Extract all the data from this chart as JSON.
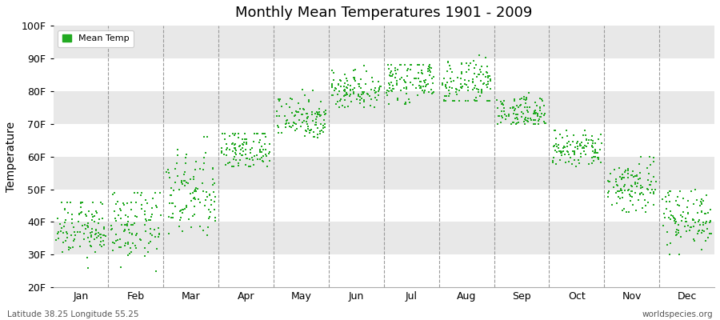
{
  "title": "Monthly Mean Temperatures 1901 - 2009",
  "ylabel": "Temperature",
  "subtitle_left": "Latitude 38.25 Longitude 55.25",
  "subtitle_right": "worldspecies.org",
  "legend_label": "Mean Temp",
  "background_color": "#ffffff",
  "plot_bg_color": "#ffffff",
  "band_color": "#e8e8e8",
  "dot_color": "#22aa22",
  "dot_size": 3,
  "ylim": [
    20,
    100
  ],
  "yticks": [
    20,
    30,
    40,
    50,
    60,
    70,
    80,
    90,
    100
  ],
  "ytick_labels": [
    "20F",
    "30F",
    "40F",
    "50F",
    "60F",
    "70F",
    "80F",
    "90F",
    "100F"
  ],
  "months": [
    "Jan",
    "Feb",
    "Mar",
    "Apr",
    "May",
    "Jun",
    "Jul",
    "Aug",
    "Sep",
    "Oct",
    "Nov",
    "Dec"
  ],
  "month_data": {
    "Jan": {
      "mean": 38.0,
      "std": 4.5,
      "min": 26,
      "max": 46
    },
    "Feb": {
      "mean": 38.5,
      "std": 5.5,
      "min": 23,
      "max": 49
    },
    "Mar": {
      "mean": 48.0,
      "std": 7.0,
      "min": 36,
      "max": 66
    },
    "Apr": {
      "mean": 62.0,
      "std": 3.5,
      "min": 57,
      "max": 67
    },
    "May": {
      "mean": 72.0,
      "std": 3.5,
      "min": 65,
      "max": 83
    },
    "Jun": {
      "mean": 80.5,
      "std": 3.0,
      "min": 75,
      "max": 88
    },
    "Jul": {
      "mean": 83.0,
      "std": 3.0,
      "min": 76,
      "max": 88
    },
    "Aug": {
      "mean": 82.0,
      "std": 4.0,
      "min": 77,
      "max": 91
    },
    "Sep": {
      "mean": 73.5,
      "std": 2.5,
      "min": 70,
      "max": 81
    },
    "Oct": {
      "mean": 62.0,
      "std": 3.0,
      "min": 57,
      "max": 68
    },
    "Nov": {
      "mean": 51.0,
      "std": 4.5,
      "min": 43,
      "max": 60
    },
    "Dec": {
      "mean": 41.5,
      "std": 4.5,
      "min": 30,
      "max": 50
    }
  }
}
